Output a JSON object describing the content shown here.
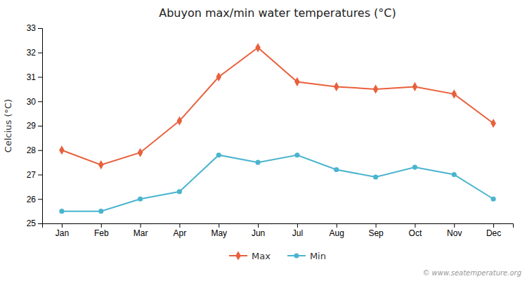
{
  "chart_data": {
    "type": "line",
    "title": "Abuyon max/min water temperatures (°C)",
    "y_label": "Celcius (°C)",
    "categories": [
      "Jan",
      "Feb",
      "Mar",
      "Apr",
      "May",
      "Jun",
      "Jul",
      "Aug",
      "Sep",
      "Oct",
      "Nov",
      "Dec"
    ],
    "series": [
      {
        "name": "Max",
        "color": "#e8603c",
        "marker": "diamond",
        "values": [
          28.0,
          27.4,
          27.9,
          29.2,
          31.0,
          32.2,
          30.8,
          30.6,
          30.5,
          30.6,
          30.3,
          29.1
        ]
      },
      {
        "name": "Min",
        "color": "#4ab4cf",
        "marker": "circle",
        "values": [
          25.5,
          25.5,
          26.0,
          26.3,
          27.8,
          27.5,
          27.8,
          27.2,
          26.9,
          27.3,
          27.0,
          26.0
        ]
      }
    ],
    "ylim": [
      25,
      33
    ],
    "yticks": [
      25,
      26,
      27,
      28,
      29,
      30,
      31,
      32,
      33
    ],
    "grid": false,
    "legend": "bottom",
    "annotations": [
      "© www.seatemperature.org"
    ]
  }
}
